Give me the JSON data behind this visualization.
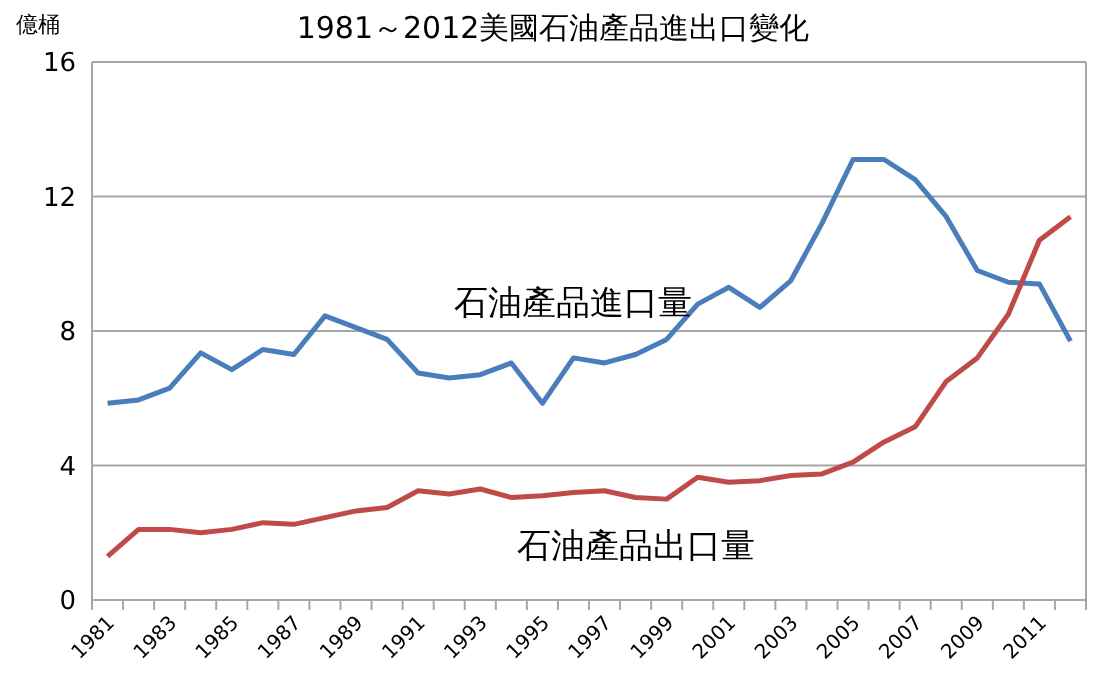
{
  "chart_data": {
    "type": "line",
    "title": "1981～2012美國石油產品進出口變化",
    "ylabel": "億桶",
    "categories": [
      "1981",
      null,
      "1983",
      null,
      "1985",
      null,
      "1987",
      null,
      "1989",
      null,
      "1991",
      null,
      "1993",
      null,
      "1995",
      null,
      "1997",
      null,
      "1999",
      null,
      "2001",
      null,
      "2003",
      null,
      "2005",
      null,
      "2007",
      null,
      "2009",
      null,
      "2011",
      null
    ],
    "series": [
      {
        "name": "石油產品進口量",
        "color": "#4a7ebb",
        "values": [
          5.85,
          5.95,
          6.3,
          7.35,
          6.85,
          7.45,
          7.3,
          8.45,
          8.1,
          7.75,
          6.75,
          6.6,
          6.7,
          7.05,
          5.85,
          7.2,
          7.05,
          7.3,
          7.75,
          8.8,
          9.3,
          8.7,
          9.5,
          11.2,
          13.1,
          13.1,
          12.5,
          11.4,
          9.8,
          9.45,
          9.4,
          7.7
        ]
      },
      {
        "name": "石油產品出口量",
        "color": "#be4b48",
        "values": [
          1.3,
          2.1,
          2.1,
          2.0,
          2.1,
          2.3,
          2.25,
          2.45,
          2.65,
          2.75,
          3.25,
          3.15,
          3.3,
          3.05,
          3.1,
          3.2,
          3.25,
          3.05,
          3.0,
          3.65,
          3.5,
          3.55,
          3.7,
          3.75,
          4.1,
          4.7,
          5.15,
          6.5,
          7.2,
          8.5,
          10.7,
          11.4
        ]
      }
    ],
    "ylim": [
      0,
      16
    ],
    "yticks": [
      0,
      4,
      8,
      12,
      16
    ],
    "grid": "y",
    "marker": "none",
    "line_style": "solid"
  }
}
